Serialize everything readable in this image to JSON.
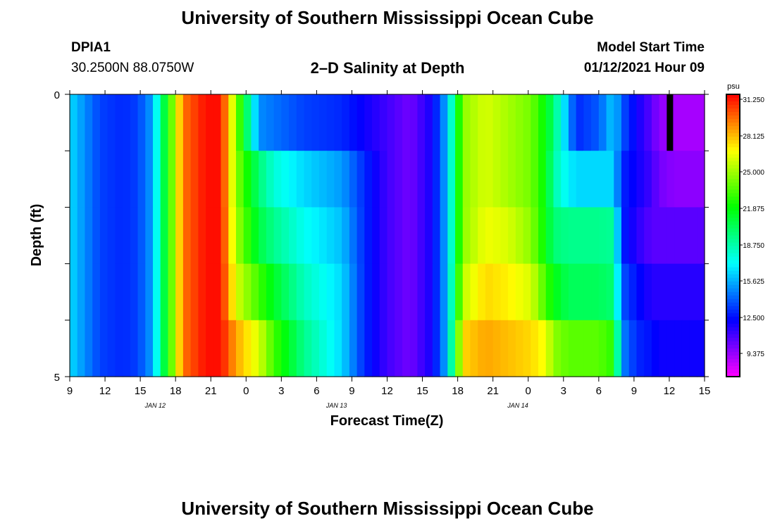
{
  "header": {
    "title": "University of Southern Mississippi Ocean Cube",
    "station": "DPIA1",
    "coordinates": "30.2500N 88.0750W",
    "plot_title": "2–D Salinity at Depth",
    "start_label": "Model Start Time",
    "start_value": "01/12/2021 Hour 09"
  },
  "footer": {
    "title": "University of Southern Mississippi Ocean Cube"
  },
  "chart_data": {
    "type": "heatmap",
    "xlabel": "Forecast Time(Z)",
    "ylabel": "Depth (ft)",
    "y_ticks": [
      "0",
      "5"
    ],
    "ylim": [
      0,
      5
    ],
    "x_tick_labels": [
      "9",
      "12",
      "15",
      "18",
      "21",
      "0",
      "3",
      "6",
      "9",
      "12",
      "15",
      "18",
      "21",
      "0",
      "3",
      "6",
      "9",
      "12",
      "15"
    ],
    "date_labels": [
      "JAN 12",
      "JAN 13",
      "JAN 14"
    ],
    "colorbar": {
      "unit": "psu",
      "tick_labels": [
        "31.250",
        "28.125",
        "25.000",
        "21.875",
        "18.750",
        "15.625",
        "12.500",
        "9.375"
      ],
      "range": [
        6.25,
        31.25
      ]
    },
    "depth_layers": 5,
    "hours_per_column": 1,
    "keyframes": {
      "hour": [
        0,
        2,
        4,
        7,
        9,
        11,
        12,
        13,
        15,
        18,
        20,
        22,
        25,
        27,
        31,
        36,
        39,
        42,
        45,
        48,
        50,
        52,
        55,
        58,
        61,
        63,
        64,
        66,
        67,
        70,
        72,
        73,
        75,
        77,
        78,
        80,
        84
      ],
      "layer1": [
        15.6,
        14,
        12.5,
        12,
        12.5,
        14.5,
        18.5,
        21.5,
        29,
        31,
        31,
        24,
        14,
        13.5,
        12.5,
        12,
        11,
        10,
        9,
        11,
        15,
        24,
        25.5,
        24.5,
        23.5,
        21,
        19,
        14.5,
        12,
        13,
        15.4,
        13,
        11,
        9.5,
        8.5,
        8,
        8
      ],
      "layer2": [
        15.6,
        14,
        12.5,
        12,
        12.5,
        14.5,
        18.5,
        21.5,
        29,
        31,
        31,
        24,
        19,
        17,
        15.5,
        14.3,
        12,
        10,
        9,
        11,
        15,
        24,
        25.5,
        24.5,
        23.5,
        21,
        18,
        16,
        15.5,
        15.5,
        15.5,
        12,
        11,
        10,
        9,
        8.5,
        8.5
      ],
      "layer3": [
        15.6,
        14,
        12.5,
        12,
        12.5,
        14.5,
        18.5,
        21.5,
        29,
        31,
        31,
        24.5,
        20,
        18.5,
        16.5,
        15,
        12,
        10,
        9,
        11,
        15,
        24,
        26,
        25.5,
        24,
        21,
        19,
        18.5,
        18.5,
        18.5,
        18.3,
        12,
        10.5,
        9.5,
        9.5,
        9.5,
        9.5
      ],
      "layer4": [
        15.6,
        14,
        12.5,
        12,
        12.5,
        14.5,
        18.5,
        21.5,
        29,
        31,
        31,
        25.5,
        22.5,
        20.5,
        17.5,
        15.5,
        12,
        10,
        9,
        11,
        15,
        25,
        27,
        26.5,
        25.5,
        22.5,
        21,
        19.5,
        19.5,
        19.5,
        19,
        13,
        11.5,
        10.5,
        10.5,
        10.5,
        10.5
      ],
      "layer5": [
        15.6,
        14,
        12.5,
        12,
        12.5,
        14.5,
        18.5,
        21.5,
        29,
        31,
        31,
        28,
        25.5,
        22.5,
        18.5,
        15.5,
        12,
        10,
        9,
        11,
        15,
        27,
        28,
        27.5,
        27,
        26,
        24,
        23,
        23,
        23,
        22,
        14,
        12,
        11.5,
        11,
        11,
        11
      ]
    },
    "marker": {
      "hour": 79,
      "layer": 1,
      "color": "#000000"
    }
  }
}
